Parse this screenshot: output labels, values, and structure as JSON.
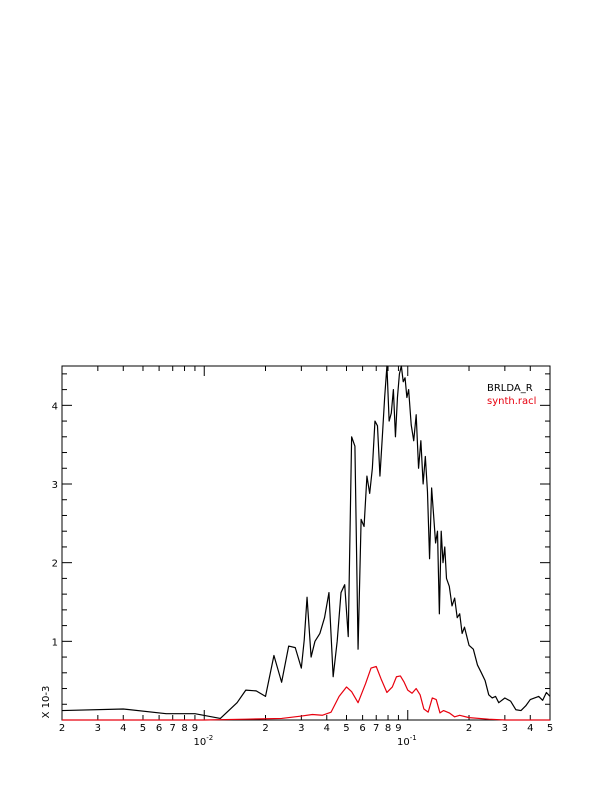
{
  "chart_data": {
    "type": "line",
    "x_scale": "log",
    "xlim": [
      0.002,
      0.5
    ],
    "ylim": [
      0,
      4.5
    ],
    "y_multiplier_label": "X 10-3",
    "x_major_ticks": [
      {
        "value": 0.01,
        "base": "10",
        "exp": "-2"
      },
      {
        "value": 0.1,
        "base": "10",
        "exp": "-1"
      }
    ],
    "x_minor_ticks": [
      {
        "value": 0.002,
        "label": "2"
      },
      {
        "value": 0.003,
        "label": "3"
      },
      {
        "value": 0.004,
        "label": "4"
      },
      {
        "value": 0.005,
        "label": "5"
      },
      {
        "value": 0.006,
        "label": "6"
      },
      {
        "value": 0.007,
        "label": "7"
      },
      {
        "value": 0.008,
        "label": "8"
      },
      {
        "value": 0.009,
        "label": "9"
      },
      {
        "value": 0.02,
        "label": "2"
      },
      {
        "value": 0.03,
        "label": "3"
      },
      {
        "value": 0.04,
        "label": "4"
      },
      {
        "value": 0.05,
        "label": "5"
      },
      {
        "value": 0.06,
        "label": "6"
      },
      {
        "value": 0.07,
        "label": "7"
      },
      {
        "value": 0.08,
        "label": "8"
      },
      {
        "value": 0.09,
        "label": "9"
      },
      {
        "value": 0.2,
        "label": "2"
      },
      {
        "value": 0.3,
        "label": "3"
      },
      {
        "value": 0.4,
        "label": "4"
      },
      {
        "value": 0.5,
        "label": "5"
      }
    ],
    "y_ticks": [
      {
        "value": 1,
        "label": "1"
      },
      {
        "value": 2,
        "label": "2"
      },
      {
        "value": 3,
        "label": "3"
      },
      {
        "value": 4,
        "label": "4"
      }
    ],
    "legend_position": "top-right",
    "series": [
      {
        "name": "BRLDA_R",
        "color": "#000000",
        "points": [
          [
            0.002,
            0.12
          ],
          [
            0.004,
            0.14
          ],
          [
            0.0065,
            0.08
          ],
          [
            0.009,
            0.08
          ],
          [
            0.012,
            0.02
          ],
          [
            0.0145,
            0.22
          ],
          [
            0.016,
            0.38
          ],
          [
            0.018,
            0.37
          ],
          [
            0.02,
            0.3
          ],
          [
            0.022,
            0.82
          ],
          [
            0.024,
            0.48
          ],
          [
            0.026,
            0.94
          ],
          [
            0.028,
            0.92
          ],
          [
            0.03,
            0.66
          ],
          [
            0.031,
            1.02
          ],
          [
            0.032,
            1.56
          ],
          [
            0.0335,
            0.8
          ],
          [
            0.035,
            1.0
          ],
          [
            0.037,
            1.1
          ],
          [
            0.039,
            1.3
          ],
          [
            0.041,
            1.62
          ],
          [
            0.043,
            0.55
          ],
          [
            0.045,
            1.0
          ],
          [
            0.047,
            1.62
          ],
          [
            0.049,
            1.72
          ],
          [
            0.051,
            1.06
          ],
          [
            0.053,
            3.6
          ],
          [
            0.055,
            3.48
          ],
          [
            0.057,
            0.9
          ],
          [
            0.059,
            2.55
          ],
          [
            0.061,
            2.46
          ],
          [
            0.063,
            3.1
          ],
          [
            0.065,
            2.88
          ],
          [
            0.067,
            3.2
          ],
          [
            0.069,
            3.8
          ],
          [
            0.071,
            3.74
          ],
          [
            0.073,
            3.1
          ],
          [
            0.075,
            3.6
          ],
          [
            0.077,
            4.1
          ],
          [
            0.079,
            4.5
          ],
          [
            0.081,
            3.8
          ],
          [
            0.083,
            3.9
          ],
          [
            0.085,
            4.2
          ],
          [
            0.087,
            3.6
          ],
          [
            0.089,
            4.1
          ],
          [
            0.091,
            4.4
          ],
          [
            0.093,
            4.5
          ],
          [
            0.095,
            4.3
          ],
          [
            0.097,
            4.35
          ],
          [
            0.099,
            4.1
          ],
          [
            0.101,
            4.2
          ],
          [
            0.104,
            3.75
          ],
          [
            0.107,
            3.55
          ],
          [
            0.11,
            3.88
          ],
          [
            0.113,
            3.2
          ],
          [
            0.116,
            3.55
          ],
          [
            0.119,
            3.0
          ],
          [
            0.122,
            3.35
          ],
          [
            0.125,
            2.9
          ],
          [
            0.128,
            2.05
          ],
          [
            0.131,
            2.95
          ],
          [
            0.134,
            2.6
          ],
          [
            0.137,
            2.25
          ],
          [
            0.14,
            2.4
          ],
          [
            0.143,
            1.35
          ],
          [
            0.146,
            2.4
          ],
          [
            0.149,
            2.0
          ],
          [
            0.152,
            2.2
          ],
          [
            0.155,
            1.8
          ],
          [
            0.16,
            1.7
          ],
          [
            0.165,
            1.45
          ],
          [
            0.17,
            1.55
          ],
          [
            0.175,
            1.3
          ],
          [
            0.18,
            1.35
          ],
          [
            0.185,
            1.1
          ],
          [
            0.19,
            1.18
          ],
          [
            0.2,
            0.95
          ],
          [
            0.21,
            0.9
          ],
          [
            0.22,
            0.7
          ],
          [
            0.23,
            0.6
          ],
          [
            0.24,
            0.5
          ],
          [
            0.25,
            0.32
          ],
          [
            0.26,
            0.28
          ],
          [
            0.27,
            0.3
          ],
          [
            0.28,
            0.22
          ],
          [
            0.3,
            0.28
          ],
          [
            0.32,
            0.24
          ],
          [
            0.34,
            0.13
          ],
          [
            0.36,
            0.12
          ],
          [
            0.38,
            0.18
          ],
          [
            0.4,
            0.26
          ],
          [
            0.42,
            0.28
          ],
          [
            0.44,
            0.3
          ],
          [
            0.46,
            0.25
          ],
          [
            0.48,
            0.35
          ],
          [
            0.5,
            0.3
          ]
        ]
      },
      {
        "name": "synth.racl",
        "color": "#e8000e",
        "points": [
          [
            0.002,
            0.0
          ],
          [
            0.01,
            0.0
          ],
          [
            0.016,
            0.01
          ],
          [
            0.024,
            0.02
          ],
          [
            0.03,
            0.05
          ],
          [
            0.034,
            0.07
          ],
          [
            0.038,
            0.06
          ],
          [
            0.042,
            0.1
          ],
          [
            0.046,
            0.3
          ],
          [
            0.05,
            0.42
          ],
          [
            0.053,
            0.36
          ],
          [
            0.057,
            0.22
          ],
          [
            0.062,
            0.46
          ],
          [
            0.066,
            0.66
          ],
          [
            0.07,
            0.68
          ],
          [
            0.074,
            0.52
          ],
          [
            0.079,
            0.35
          ],
          [
            0.084,
            0.42
          ],
          [
            0.088,
            0.55
          ],
          [
            0.092,
            0.56
          ],
          [
            0.096,
            0.48
          ],
          [
            0.1,
            0.38
          ],
          [
            0.105,
            0.34
          ],
          [
            0.11,
            0.4
          ],
          [
            0.115,
            0.32
          ],
          [
            0.12,
            0.14
          ],
          [
            0.126,
            0.1
          ],
          [
            0.132,
            0.28
          ],
          [
            0.138,
            0.26
          ],
          [
            0.144,
            0.09
          ],
          [
            0.15,
            0.12
          ],
          [
            0.16,
            0.09
          ],
          [
            0.17,
            0.04
          ],
          [
            0.18,
            0.06
          ],
          [
            0.2,
            0.03
          ],
          [
            0.25,
            0.01
          ],
          [
            0.3,
            0.0
          ],
          [
            0.5,
            0.0
          ]
        ]
      }
    ]
  }
}
